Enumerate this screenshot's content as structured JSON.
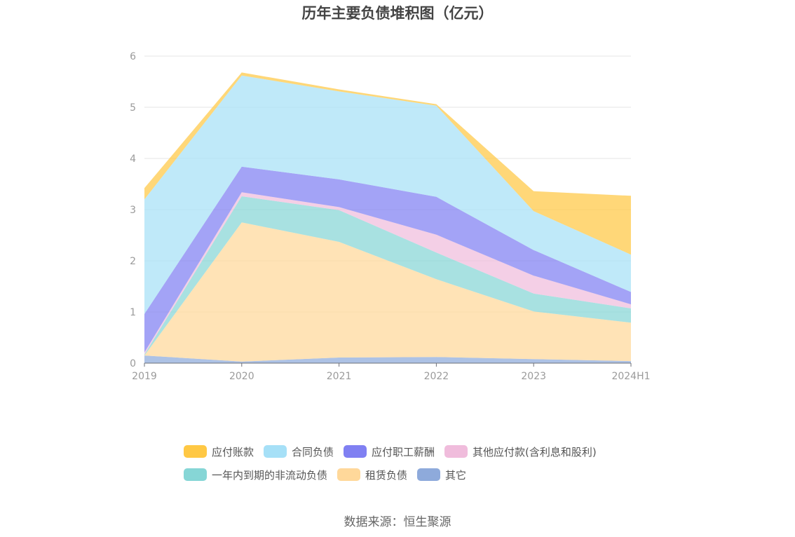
{
  "chart_data": {
    "type": "area",
    "title": "历年主要负债堆积图（亿元）",
    "categories": [
      "2019",
      "2020",
      "2021",
      "2022",
      "2023",
      "2024H1"
    ],
    "ylim": [
      0,
      6
    ],
    "yticks": [
      "0",
      "1",
      "2",
      "3",
      "4",
      "5",
      "6"
    ],
    "grid": true,
    "legend_position": "bottom",
    "series": [
      {
        "name": "其它",
        "color": "#8eaadb",
        "values": [
          0.15,
          0.03,
          0.11,
          0.12,
          0.08,
          0.04
        ]
      },
      {
        "name": "租赁负债",
        "color": "#ffd89a",
        "values": [
          0.0,
          2.72,
          2.26,
          1.52,
          0.93,
          0.75
        ]
      },
      {
        "name": "一年内到期的非流动负债",
        "color": "#86d6d6",
        "values": [
          0.02,
          0.51,
          0.62,
          0.52,
          0.35,
          0.28
        ]
      },
      {
        "name": "其他应付款(含利息和股利)",
        "color": "#f0bcdc",
        "values": [
          0.04,
          0.08,
          0.06,
          0.35,
          0.35,
          0.08
        ]
      },
      {
        "name": "应付职工薪酬",
        "color": "#8080f2",
        "values": [
          0.75,
          0.5,
          0.54,
          0.74,
          0.5,
          0.24
        ]
      },
      {
        "name": "合同负债",
        "color": "#a6e0f7",
        "values": [
          2.24,
          1.78,
          1.72,
          1.78,
          0.76,
          0.73
        ]
      },
      {
        "name": "应付账款",
        "color": "#ffc844",
        "values": [
          0.22,
          0.06,
          0.04,
          0.03,
          0.39,
          1.15
        ]
      }
    ]
  },
  "legend": {
    "rows": [
      [
        {
          "label": "应付账款",
          "color": "#ffc844"
        },
        {
          "label": "合同负债",
          "color": "#a6e0f7"
        },
        {
          "label": "应付职工薪酬",
          "color": "#8080f2"
        },
        {
          "label": "其他应付款(含利息和股利)",
          "color": "#f0bcdc"
        }
      ],
      [
        {
          "label": "一年内到期的非流动负债",
          "color": "#86d6d6"
        },
        {
          "label": "租赁负债",
          "color": "#ffd89a"
        },
        {
          "label": "其它",
          "color": "#8eaadb"
        }
      ]
    ]
  },
  "source": "数据来源：恒生聚源"
}
